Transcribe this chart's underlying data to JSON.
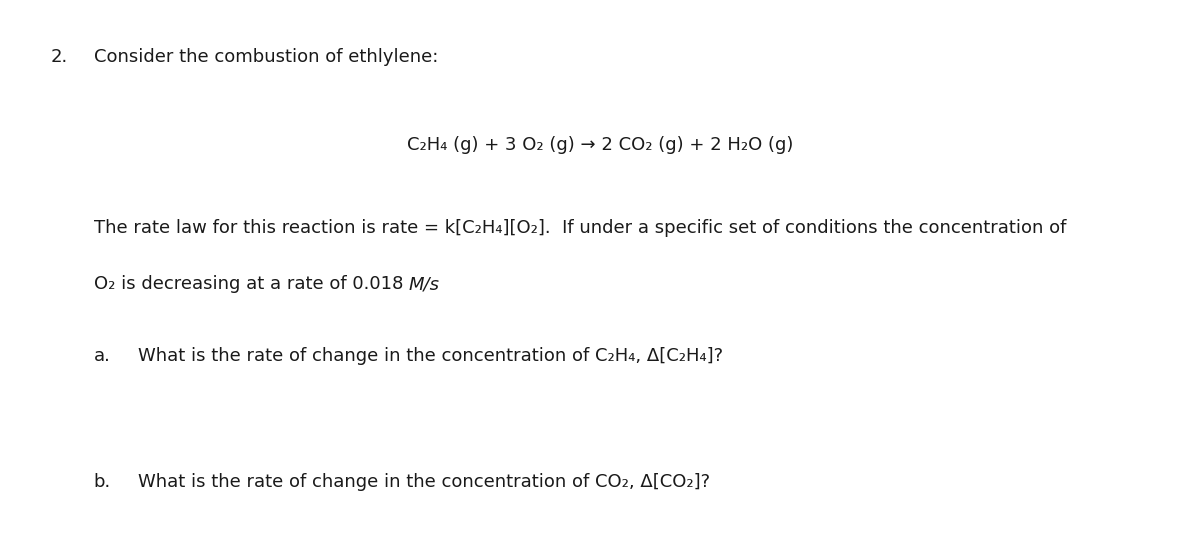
{
  "background_color": "#ffffff",
  "fig_width": 12.0,
  "fig_height": 5.34,
  "dpi": 100,
  "question_number": "2.",
  "title_text": "Consider the combustion of ethlylene:",
  "equation": "C₂H₄ (g) + 3 O₂ (g) → 2 CO₂ (g) + 2 H₂O (g)",
  "body_text_1": "The rate law for this reaction is rate = k[C₂H₄][O₂].  If under a specific set of conditions the concentration of",
  "body_text_2_regular": "O₂ is decreasing at a rate of 0.018 ",
  "body_text_2_italic": "M/s",
  "part_a_label": "a.",
  "part_a_text": "What is the rate of change in the concentration of C₂H₄, Δ[C₂H₄]?",
  "part_b_label": "b.",
  "part_b_text": "What is the rate of change in the concentration of CO₂, Δ[CO₂]?",
  "font_size_title": 13,
  "font_size_eq": 13,
  "font_size_body": 13,
  "font_size_parts": 13,
  "text_color": "#1a1a1a",
  "font_family": "DejaVu Sans"
}
